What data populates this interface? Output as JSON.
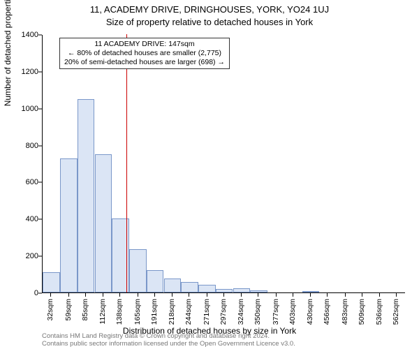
{
  "title_line1": "11, ACADEMY DRIVE, DRINGHOUSES, YORK, YO24 1UJ",
  "title_line2": "Size of property relative to detached houses in York",
  "y_axis_label": "Number of detached properties",
  "x_axis_label": "Distribution of detached houses by size in York",
  "callout": {
    "line1": "11 ACADEMY DRIVE: 147sqm",
    "line2": "← 80% of detached houses are smaller (2,775)",
    "line3": "20% of semi-detached houses are larger (698) →"
  },
  "footnote": {
    "line1": "Contains HM Land Registry data © Crown copyright and database right 2024.",
    "line2": "Contains public sector information licensed under the Open Government Licence v3.0."
  },
  "chart": {
    "type": "histogram",
    "bar_fill": "#dbe5f5",
    "bar_border": "#7a97c9",
    "vline_color": "#cc0000",
    "background_color": "#ffffff",
    "axis_color": "#000000",
    "font_family": "Arial",
    "ylim": [
      0,
      1400
    ],
    "ytick_step": 200,
    "yticks": [
      0,
      200,
      400,
      600,
      800,
      1000,
      1200,
      1400
    ],
    "xlim_sqm": [
      18.7,
      575.5
    ],
    "vline_sqm": 147,
    "bin_width_sqm": 26.5,
    "bars": [
      {
        "label": "32sqm",
        "center_sqm": 32,
        "value": 110
      },
      {
        "label": "59sqm",
        "center_sqm": 59,
        "value": 725
      },
      {
        "label": "85sqm",
        "center_sqm": 85,
        "value": 1050
      },
      {
        "label": "112sqm",
        "center_sqm": 112,
        "value": 750
      },
      {
        "label": "138sqm",
        "center_sqm": 138,
        "value": 400
      },
      {
        "label": "165sqm",
        "center_sqm": 165,
        "value": 235
      },
      {
        "label": "191sqm",
        "center_sqm": 191,
        "value": 120
      },
      {
        "label": "218sqm",
        "center_sqm": 218,
        "value": 75
      },
      {
        "label": "244sqm",
        "center_sqm": 244,
        "value": 55
      },
      {
        "label": "271sqm",
        "center_sqm": 271,
        "value": 40
      },
      {
        "label": "297sqm",
        "center_sqm": 297,
        "value": 18
      },
      {
        "label": "324sqm",
        "center_sqm": 324,
        "value": 22
      },
      {
        "label": "350sqm",
        "center_sqm": 350,
        "value": 12
      },
      {
        "label": "377sqm",
        "center_sqm": 377,
        "value": 0
      },
      {
        "label": "403sqm",
        "center_sqm": 403,
        "value": 0
      },
      {
        "label": "430sqm",
        "center_sqm": 430,
        "value": 8
      },
      {
        "label": "456sqm",
        "center_sqm": 456,
        "value": 0
      },
      {
        "label": "483sqm",
        "center_sqm": 483,
        "value": 0
      },
      {
        "label": "509sqm",
        "center_sqm": 509,
        "value": 0
      },
      {
        "label": "536sqm",
        "center_sqm": 536,
        "value": 0
      },
      {
        "label": "562sqm",
        "center_sqm": 562,
        "value": 0
      }
    ]
  }
}
